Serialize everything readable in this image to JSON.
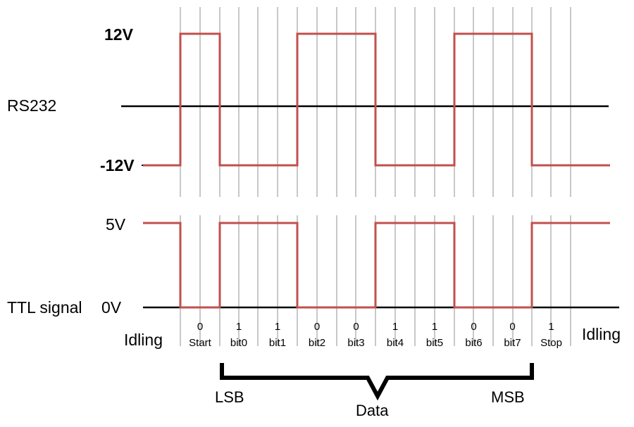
{
  "rs232": {
    "title": "RS232",
    "high_label": "12V",
    "low_label": "-12V"
  },
  "ttl": {
    "title": "TTL signal",
    "high_label": "5V",
    "low_label": "0V"
  },
  "idle_left": "Idling",
  "idle_right": "Idling",
  "bits": [
    {
      "value": "0",
      "name": "Start"
    },
    {
      "value": "1",
      "name": "bit0"
    },
    {
      "value": "1",
      "name": "bit1"
    },
    {
      "value": "0",
      "name": "bit2"
    },
    {
      "value": "0",
      "name": "bit3"
    },
    {
      "value": "1",
      "name": "bit4"
    },
    {
      "value": "1",
      "name": "bit5"
    },
    {
      "value": "0",
      "name": "bit6"
    },
    {
      "value": "0",
      "name": "bit7"
    },
    {
      "value": "1",
      "name": "Stop"
    }
  ],
  "brace": {
    "left_label": "LSB",
    "right_label": "MSB",
    "center_label": "Data"
  },
  "colors": {
    "signal": "#c0504d",
    "axis": "#000000",
    "grid": "#c8c8c8"
  }
}
